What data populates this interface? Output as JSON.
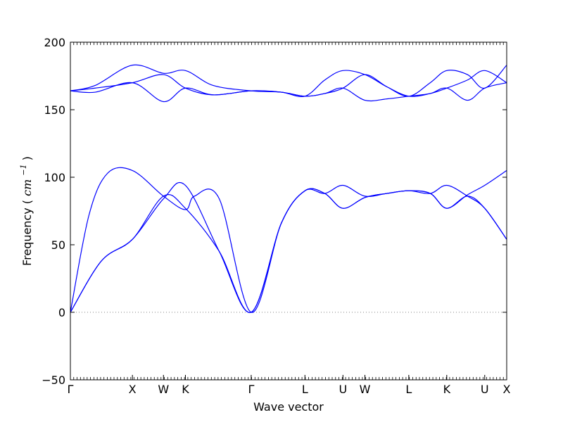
{
  "chart_data": {
    "type": "line",
    "title": "",
    "xlabel": "Wave vector",
    "ylabel": "Frequency",
    "ylabel_unit": "cm",
    "ylabel_unit_exp": "−1",
    "ylim": [
      -50,
      200
    ],
    "yticks": [
      -50,
      0,
      50,
      100,
      150,
      200
    ],
    "ytick_labels": [
      "−50",
      "0",
      "50",
      "100",
      "150",
      "200"
    ],
    "grid": false,
    "zero_line": {
      "value": 0,
      "style": "dotted",
      "color": "#808080"
    },
    "line_color": "#0000ff",
    "high_symmetry_points": [
      {
        "label": "Γ",
        "x": 0.0
      },
      {
        "label": "X",
        "x": 1.0
      },
      {
        "label": "W",
        "x": 1.5
      },
      {
        "label": "K",
        "x": 1.854
      },
      {
        "label": "Γ",
        "x": 2.914
      },
      {
        "label": "L",
        "x": 3.78
      },
      {
        "label": "U",
        "x": 4.393
      },
      {
        "label": "W",
        "x": 4.747
      },
      {
        "label": "L",
        "x": 5.454
      },
      {
        "label": "K",
        "x": 6.066
      },
      {
        "label": "U",
        "x": 6.678
      },
      {
        "label": "X",
        "x": 7.032
      }
    ],
    "x_range": [
      0,
      7.032
    ],
    "series": [
      {
        "x": [
          0,
          0.5,
          1.0,
          1.5,
          1.854,
          2.4,
          2.914,
          3.4,
          3.78,
          4.1,
          4.393,
          4.747,
          5.1,
          5.454,
          5.8,
          6.066,
          6.4,
          6.678,
          7.032
        ],
        "y": [
          0,
          38,
          54,
          86,
          77,
          45,
          0,
          66,
          90,
          88,
          77,
          85,
          88,
          90,
          88,
          77,
          86,
          77,
          54
        ]
      },
      {
        "x": [
          0,
          0.5,
          1.0,
          1.5,
          1.854,
          2.4,
          2.914,
          3.4,
          3.78,
          4.1,
          4.393,
          4.747,
          5.1,
          5.454,
          5.8,
          6.066,
          6.4,
          6.678,
          7.032
        ],
        "y": [
          0,
          38,
          54,
          84,
          94,
          45,
          0,
          66,
          90,
          88,
          94,
          86,
          88,
          90,
          88,
          94,
          86,
          77,
          54
        ]
      },
      {
        "x": [
          0,
          0.3,
          0.6,
          1.0,
          1.5,
          1.854,
          2.0,
          2.4,
          2.914,
          3.4,
          3.78,
          4.1,
          4.393,
          4.747,
          5.1,
          5.454,
          5.8,
          6.066,
          6.4,
          6.678,
          7.032
        ],
        "y": [
          0,
          72,
          103,
          105,
          86,
          76,
          86,
          84,
          0,
          66,
          90,
          88,
          77,
          85,
          88,
          90,
          88,
          77,
          87,
          94,
          105
        ]
      },
      {
        "x": [
          0,
          0.4,
          1.0,
          1.5,
          1.854,
          2.3,
          2.914,
          3.4,
          3.78,
          4.1,
          4.393,
          4.747,
          5.1,
          5.454,
          5.8,
          6.066,
          6.4,
          6.678,
          7.032
        ],
        "y": [
          164,
          163,
          170,
          156,
          166,
          161,
          164,
          163,
          160,
          162,
          166,
          157,
          158,
          160,
          162,
          166,
          157,
          166,
          170
        ]
      },
      {
        "x": [
          0,
          0.4,
          1.0,
          1.5,
          1.854,
          2.3,
          2.914,
          3.4,
          3.78,
          4.1,
          4.393,
          4.747,
          5.1,
          5.454,
          5.8,
          6.066,
          6.4,
          6.678,
          7.032
        ],
        "y": [
          164,
          166,
          170,
          176,
          166,
          161,
          164,
          163,
          160,
          162,
          166,
          176,
          167,
          160,
          162,
          166,
          172,
          179,
          170
        ]
      },
      {
        "x": [
          0,
          0.4,
          1.0,
          1.5,
          1.854,
          2.3,
          2.914,
          3.4,
          3.78,
          4.1,
          4.393,
          4.747,
          5.1,
          5.454,
          5.8,
          6.066,
          6.4,
          6.678,
          7.032
        ],
        "y": [
          164,
          168,
          183,
          177,
          179,
          168,
          164,
          163,
          160,
          172,
          179,
          176,
          167,
          160,
          170,
          179,
          176,
          166,
          183
        ]
      }
    ]
  }
}
